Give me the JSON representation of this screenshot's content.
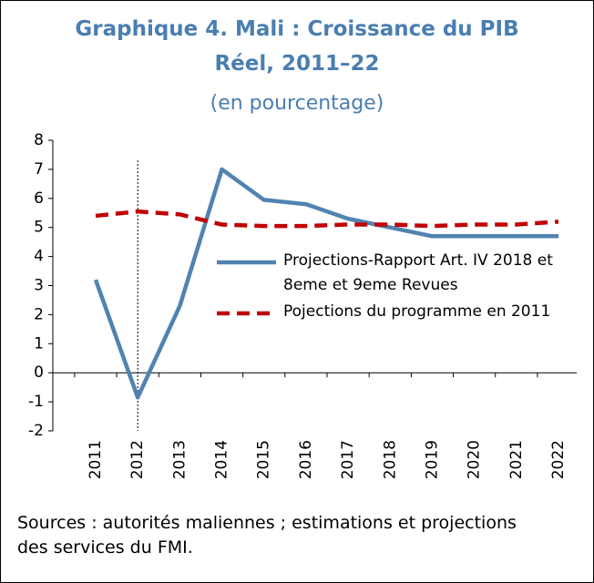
{
  "chart_data": {
    "type": "line",
    "title": "Graphique 4. Mali : Croissance du PIB Réel, 2011–22",
    "subtitle": "(en pourcentage)",
    "categories": [
      "2011",
      "2012",
      "2013",
      "2014",
      "2015",
      "2016",
      "2017",
      "2018",
      "2019",
      "2020",
      "2021",
      "2022"
    ],
    "series": [
      {
        "name": "Projections-Rapport Art. IV 2018 et 8eme et 9eme Revues",
        "color": "#5183b0",
        "style": "solid",
        "values": [
          3.2,
          -0.85,
          2.3,
          7.0,
          5.95,
          5.8,
          5.3,
          5.0,
          4.7,
          4.7,
          4.7,
          4.7
        ]
      },
      {
        "name": "Pojections du programme en 2011",
        "color": "#c00000",
        "style": "dashed",
        "values": [
          5.4,
          5.55,
          5.45,
          5.1,
          5.05,
          5.05,
          5.1,
          5.1,
          5.05,
          5.1,
          5.1,
          5.2
        ]
      }
    ],
    "ylim": [
      -2,
      8
    ],
    "yticks": [
      -2,
      -1,
      0,
      1,
      2,
      3,
      4,
      5,
      6,
      7,
      8
    ],
    "note": "Sources : autorités maliennes ; estimations et projections des services du FMI."
  }
}
